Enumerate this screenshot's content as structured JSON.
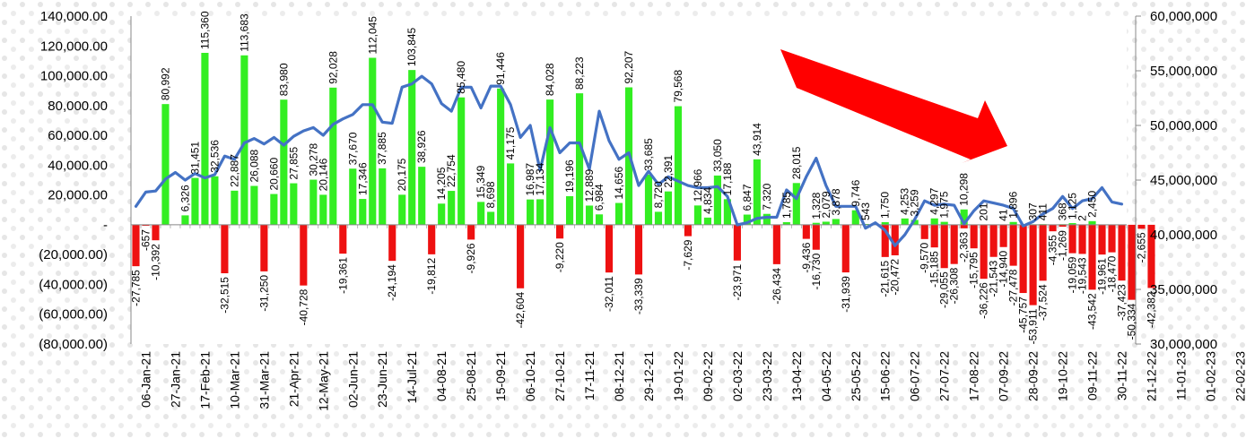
{
  "chart_data": {
    "type": "bar+line",
    "title": "",
    "xlabel": "",
    "ylabel": "",
    "left_axis": {
      "range": [
        -80000,
        140000
      ],
      "ticks": [
        -80000,
        -60000,
        -40000,
        -20000,
        0,
        20000,
        40000,
        60000,
        80000,
        100000,
        120000,
        140000
      ],
      "tick_labels": [
        "(80,000.00)",
        "(60,000.00)",
        "(40,000.00)",
        "(20,000.00)",
        "-",
        "20,000.00",
        "40,000.00",
        "60,000.00",
        "80,000.00",
        "100,000.00",
        "120,000.00",
        "140,000.00"
      ]
    },
    "right_axis": {
      "range": [
        30000000,
        60000000
      ],
      "ticks": [
        30000000,
        35000000,
        40000000,
        45000000,
        50000000,
        55000000,
        60000000
      ],
      "tick_labels": [
        "30,000,000",
        "35,000,000",
        "40,000,000",
        "45,000,000",
        "50,000,000",
        "55,000,000",
        "60,000,000"
      ]
    },
    "x_tick_labels": [
      "06-Jan-21",
      "27-Jan-21",
      "17-Feb-21",
      "10-Mar-21",
      "31-Mar-21",
      "21-Apr-21",
      "12-May-21",
      "02-Jun-21",
      "23-Jun-21",
      "14-Jul-21",
      "04-08-21",
      "25-08-21",
      "15-09-21",
      "06-10-21",
      "27-10-21",
      "17-11-21",
      "08-12-21",
      "29-12-21",
      "19-01-22",
      "09-02-22",
      "02-03-22",
      "23-03-22",
      "13-04-22",
      "04-05-22",
      "25-05-22",
      "15-06-22",
      "06-07-22",
      "27-07-22",
      "17-08-22",
      "07-09-22",
      "28-09-22",
      "19-10-22",
      "09-11-22",
      "30-11-22",
      "21-12-22",
      "11-01-23",
      "01-02-23",
      "22-02-23"
    ],
    "positive_bars": [
      {
        "i": 3,
        "v": 80992,
        "label": "80,992"
      },
      {
        "i": 5,
        "v": 6326,
        "label": "6,326"
      },
      {
        "i": 6,
        "v": 31451,
        "label": "31,451"
      },
      {
        "i": 7,
        "v": 115360,
        "label": "115,360"
      },
      {
        "i": 8,
        "v": 32536,
        "label": "32,536"
      },
      {
        "i": 10,
        "v": 22887,
        "label": "22,887"
      },
      {
        "i": 11,
        "v": 113683,
        "label": "113,683"
      },
      {
        "i": 12,
        "v": 26088,
        "label": "26,088"
      },
      {
        "i": 14,
        "v": 20660,
        "label": "20,660"
      },
      {
        "i": 15,
        "v": 83980,
        "label": "83,980"
      },
      {
        "i": 16,
        "v": 27855,
        "label": "27,855"
      },
      {
        "i": 18,
        "v": 30278,
        "label": "30,278"
      },
      {
        "i": 19,
        "v": 20146,
        "label": "20,146"
      },
      {
        "i": 20,
        "v": 92028,
        "label": "92,028"
      },
      {
        "i": 22,
        "v": 37670,
        "label": "37,670"
      },
      {
        "i": 23,
        "v": 17346,
        "label": "17,346"
      },
      {
        "i": 24,
        "v": 112045,
        "label": "112,045"
      },
      {
        "i": 25,
        "v": 37885,
        "label": "37,885"
      },
      {
        "i": 27,
        "v": 20175,
        "label": "20,175"
      },
      {
        "i": 28,
        "v": 103845,
        "label": "103,845"
      },
      {
        "i": 29,
        "v": 38926,
        "label": "38,926"
      },
      {
        "i": 31,
        "v": 14205,
        "label": "14,205"
      },
      {
        "i": 32,
        "v": 22754,
        "label": "22,754"
      },
      {
        "i": 33,
        "v": 85480,
        "label": "85,480"
      },
      {
        "i": 35,
        "v": 15349,
        "label": "15,349"
      },
      {
        "i": 36,
        "v": 8698,
        "label": "8,698"
      },
      {
        "i": 37,
        "v": 91446,
        "label": "91,446"
      },
      {
        "i": 38,
        "v": 41175,
        "label": "41,175"
      },
      {
        "i": 40,
        "v": 16987,
        "label": "16,987"
      },
      {
        "i": 41,
        "v": 17134,
        "label": "17,134"
      },
      {
        "i": 42,
        "v": 84028,
        "label": "84,028"
      },
      {
        "i": 44,
        "v": 19196,
        "label": "19,196"
      },
      {
        "i": 45,
        "v": 88223,
        "label": "88,223"
      },
      {
        "i": 46,
        "v": 12889,
        "label": "12,889"
      },
      {
        "i": 47,
        "v": 6984,
        "label": "6,984"
      },
      {
        "i": 49,
        "v": 14656,
        "label": "14,656"
      },
      {
        "i": 50,
        "v": 92207,
        "label": "92,207"
      },
      {
        "i": 52,
        "v": 33685,
        "label": "33,685"
      },
      {
        "i": 53,
        "v": 8720,
        "label": "8,720"
      },
      {
        "i": 54,
        "v": 22391,
        "label": "22,391"
      },
      {
        "i": 55,
        "v": 79568,
        "label": "79,568"
      },
      {
        "i": 57,
        "v": 12966,
        "label": "12,966"
      },
      {
        "i": 58,
        "v": 4834,
        "label": "4,834"
      },
      {
        "i": 59,
        "v": 33050,
        "label": "33,050"
      },
      {
        "i": 60,
        "v": 17188,
        "label": "17,188"
      },
      {
        "i": 62,
        "v": 6847,
        "label": "6,847"
      },
      {
        "i": 63,
        "v": 43914,
        "label": "43,914"
      },
      {
        "i": 64,
        "v": 7320,
        "label": "7,320"
      },
      {
        "i": 66,
        "v": 1785,
        "label": "1,785"
      },
      {
        "i": 67,
        "v": 28015,
        "label": "28,015"
      },
      {
        "i": 69,
        "v": 1328,
        "label": "1,328"
      },
      {
        "i": 70,
        "v": 2079,
        "label": "2,079"
      },
      {
        "i": 71,
        "v": 3878,
        "label": "3,878"
      },
      {
        "i": 73,
        "v": 9746,
        "label": "9,746"
      },
      {
        "i": 74,
        "v": 543,
        "label": "543"
      },
      {
        "i": 76,
        "v": 1750,
        "label": "1,750"
      },
      {
        "i": 78,
        "v": 4253,
        "label": "4,253"
      },
      {
        "i": 79,
        "v": 3259,
        "label": "3,259"
      },
      {
        "i": 81,
        "v": 4297,
        "label": "4,297"
      },
      {
        "i": 82,
        "v": 1975,
        "label": "1,975"
      },
      {
        "i": 84,
        "v": 10298,
        "label": "10,298"
      },
      {
        "i": 86,
        "v": 201,
        "label": "201"
      },
      {
        "i": 88,
        "v": 41,
        "label": "41"
      },
      {
        "i": 89,
        "v": 1896,
        "label": "1,896"
      },
      {
        "i": 91,
        "v": 307,
        "label": "307"
      },
      {
        "i": 92,
        "v": 411,
        "label": "411"
      },
      {
        "i": 94,
        "v": 368,
        "label": "368"
      },
      {
        "i": 95,
        "v": 1125,
        "label": "1,125"
      },
      {
        "i": 96,
        "v": 2,
        "label": "2"
      },
      {
        "i": 97,
        "v": 2450,
        "label": "2,450"
      }
    ],
    "negative_bars": [
      {
        "i": 0,
        "v": -27785,
        "label": "-27,785"
      },
      {
        "i": 1,
        "v": -657,
        "label": "-657"
      },
      {
        "i": 2,
        "v": -10392,
        "label": "-10,392"
      },
      {
        "i": 9,
        "v": -32515,
        "label": "-32,515"
      },
      {
        "i": 13,
        "v": -31250,
        "label": "-31,250"
      },
      {
        "i": 17,
        "v": -40728,
        "label": "-40,728"
      },
      {
        "i": 21,
        "v": -19361,
        "label": "-19,361"
      },
      {
        "i": 26,
        "v": -24194,
        "label": "-24,194"
      },
      {
        "i": 30,
        "v": -19812,
        "label": "-19,812"
      },
      {
        "i": 34,
        "v": -9926,
        "label": "-9,926"
      },
      {
        "i": 39,
        "v": -42604,
        "label": "-42,604"
      },
      {
        "i": 43,
        "v": -9220,
        "label": "-9,220"
      },
      {
        "i": 48,
        "v": -32011,
        "label": "-32,011"
      },
      {
        "i": 51,
        "v": -33339,
        "label": "-33,339"
      },
      {
        "i": 56,
        "v": -7629,
        "label": "-7,629"
      },
      {
        "i": 61,
        "v": -23971,
        "label": "-23,971"
      },
      {
        "i": 65,
        "v": -26434,
        "label": "-26,434"
      },
      {
        "i": 68,
        "v": -9436,
        "label": "-9,436"
      },
      {
        "i": 69,
        "v": -16730,
        "label": "-16,730"
      },
      {
        "i": 72,
        "v": -31939,
        "label": "-31,939"
      },
      {
        "i": 76,
        "v": -21615,
        "label": "-21,615"
      },
      {
        "i": 77,
        "v": -20472,
        "label": "-20,472"
      },
      {
        "i": 80,
        "v": -9570,
        "label": "-9,570"
      },
      {
        "i": 81,
        "v": -15185,
        "label": "-15,185"
      },
      {
        "i": 82,
        "v": -29055,
        "label": "-29,055"
      },
      {
        "i": 83,
        "v": -26308,
        "label": "-26,308"
      },
      {
        "i": 84,
        "v": -2363,
        "label": "-2,363"
      },
      {
        "i": 85,
        "v": -15795,
        "label": "-15,795"
      },
      {
        "i": 86,
        "v": -36226,
        "label": "-36,226"
      },
      {
        "i": 87,
        "v": -21543,
        "label": "-21,543"
      },
      {
        "i": 88,
        "v": -14940,
        "label": "-14,940"
      },
      {
        "i": 89,
        "v": -27478,
        "label": "-27,478"
      },
      {
        "i": 90,
        "v": -45757,
        "label": "-45,757"
      },
      {
        "i": 91,
        "v": -53911,
        "label": "-53,911"
      },
      {
        "i": 92,
        "v": -37524,
        "label": "-37,524"
      },
      {
        "i": 93,
        "v": -4355,
        "label": "-4,355"
      },
      {
        "i": 94,
        "v": -1269,
        "label": "-1,269"
      },
      {
        "i": 95,
        "v": -19059,
        "label": "-19,059"
      },
      {
        "i": 96,
        "v": -19543,
        "label": "-19,543"
      },
      {
        "i": 97,
        "v": -43542,
        "label": "-43,542"
      },
      {
        "i": 98,
        "v": -19961,
        "label": "-19,961"
      },
      {
        "i": 99,
        "v": -18470,
        "label": "-18,470"
      },
      {
        "i": 100,
        "v": -37423,
        "label": "-37,423"
      },
      {
        "i": 101,
        "v": -50334,
        "label": "-50,334"
      },
      {
        "i": 102,
        "v": -2655,
        "label": "-2,655"
      },
      {
        "i": 103,
        "v": -42382,
        "label": "-42,382"
      }
    ],
    "line_series": {
      "axis": "right",
      "values": [
        42600000,
        43900000,
        44000000,
        45100000,
        45700000,
        45000000,
        45600000,
        45200000,
        45500000,
        47200000,
        46900000,
        48400000,
        48800000,
        48300000,
        48900000,
        48200000,
        49000000,
        49500000,
        49800000,
        49100000,
        50100000,
        50600000,
        51000000,
        51900000,
        51900000,
        50300000,
        50200000,
        53500000,
        53800000,
        54500000,
        53800000,
        52000000,
        51300000,
        53500000,
        53500000,
        51600000,
        53600000,
        53600000,
        51900000,
        48900000,
        50000000,
        45900000,
        49800000,
        47500000,
        48400000,
        48400000,
        46000000,
        51300000,
        48600000,
        46900000,
        47500000,
        44500000,
        45800000,
        44600000,
        45300000,
        44900000,
        44500000,
        44300000,
        44300000,
        44400000,
        43500000,
        40900000,
        41100000,
        41500000,
        41600000,
        41600000,
        44100000,
        43300000,
        45300000,
        47000000,
        44500000,
        42600000,
        42600000,
        42600000,
        40600000,
        41100000,
        40400000,
        39000000,
        40000000,
        41400000,
        43100000,
        42700000,
        42800000,
        42700000,
        41000000,
        42200000,
        43100000,
        42900000,
        42700000,
        42400000,
        40800000,
        41200000,
        41900000,
        42400000,
        43500000,
        42400000,
        43100000,
        43300000,
        44300000,
        43000000,
        42800000
      ]
    },
    "bar_colors": {
      "positive": "#33ee22",
      "negative": "#ee1111"
    },
    "line_color": "#4472c4",
    "arrow_color": "#ff0000",
    "grid": false
  }
}
